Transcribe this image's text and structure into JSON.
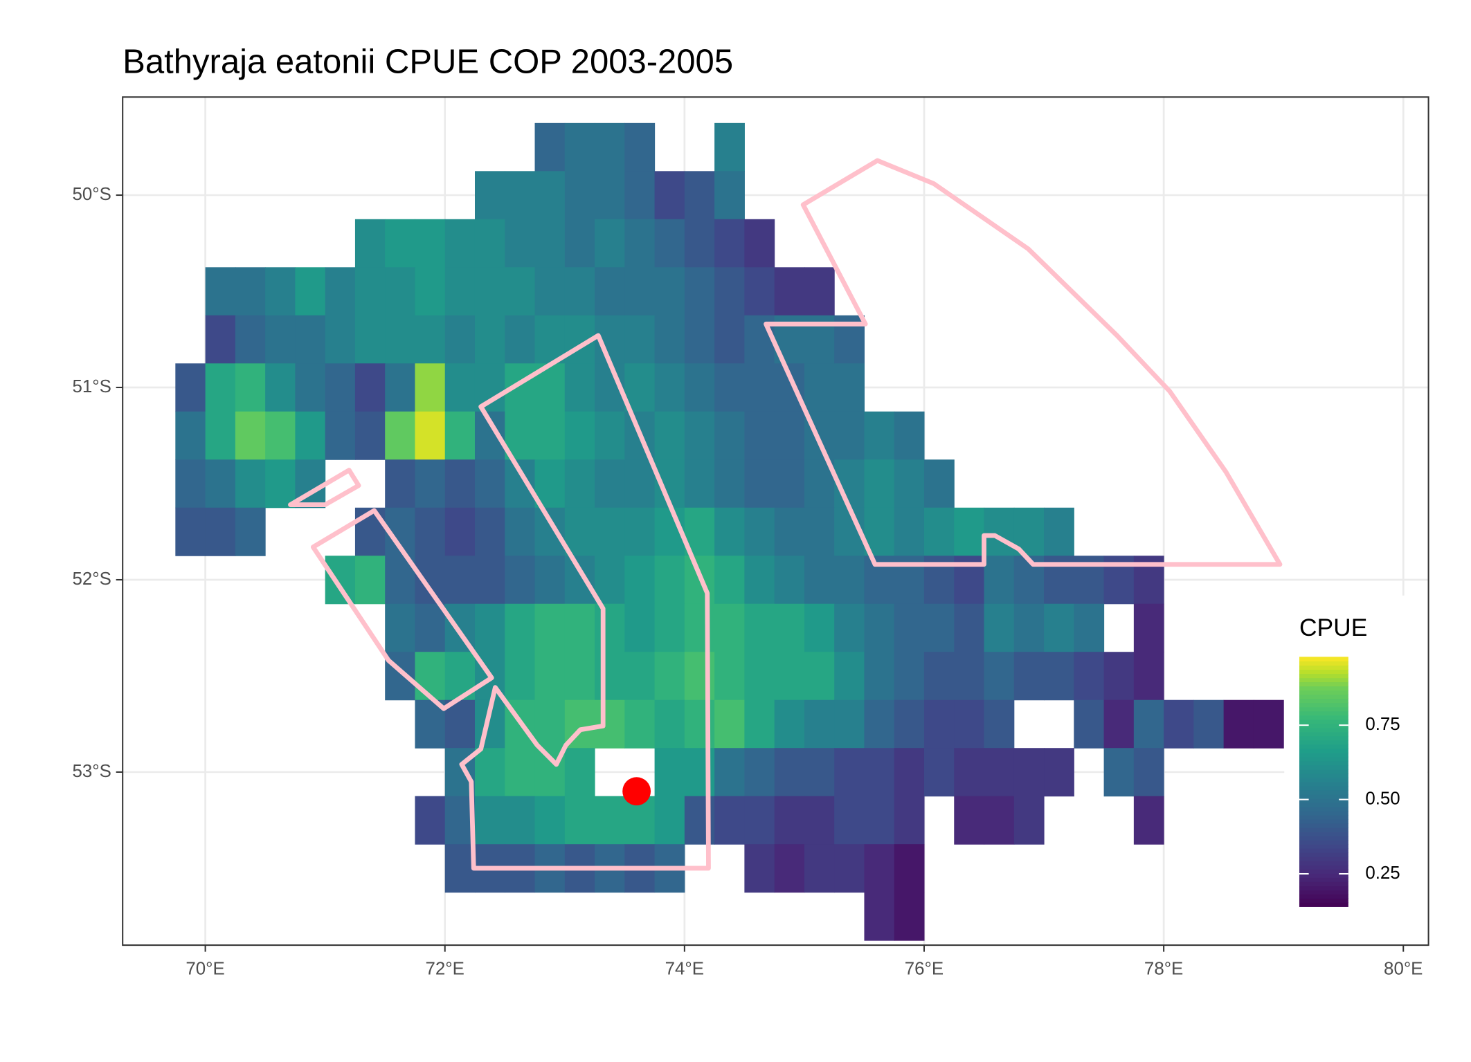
{
  "chart_data": {
    "type": "heatmap",
    "title": "Bathyraja eatonii  CPUE COP 2003-2005",
    "x": [
      69.875,
      70.125,
      70.375,
      70.625,
      70.875,
      71.125,
      71.375,
      71.625,
      71.875,
      72.125,
      72.375,
      72.625,
      72.875,
      73.125,
      73.375,
      73.625,
      73.875,
      74.125,
      74.375,
      74.625,
      74.875,
      75.125,
      75.375,
      75.625,
      75.875,
      76.125,
      76.375,
      76.625,
      76.875,
      77.125,
      77.375,
      77.625,
      77.875,
      78.125,
      78.375,
      78.625,
      78.875
    ],
    "y": [
      -49.75,
      -50,
      -50.25,
      -50.5,
      -50.75,
      -51,
      -51.25,
      -51.5,
      -51.75,
      -52,
      -52.25,
      -52.5,
      -52.75,
      -53,
      -53.25,
      -53.5,
      -53.75
    ],
    "values": [
      [
        null,
        null,
        null,
        null,
        null,
        null,
        null,
        null,
        null,
        null,
        null,
        null,
        0.45,
        0.5,
        0.5,
        0.45,
        null,
        null,
        0.55,
        null,
        null,
        null,
        null,
        null,
        null,
        null,
        null,
        null,
        null,
        null,
        null,
        null,
        null,
        null,
        null,
        null,
        null
      ],
      [
        null,
        null,
        null,
        null,
        null,
        null,
        null,
        null,
        null,
        null,
        0.55,
        0.55,
        0.55,
        0.5,
        0.5,
        0.45,
        0.35,
        0.4,
        0.5,
        null,
        null,
        null,
        null,
        null,
        null,
        null,
        null,
        null,
        null,
        null,
        null,
        null,
        null,
        null,
        null,
        null,
        null
      ],
      [
        null,
        null,
        null,
        null,
        null,
        null,
        0.6,
        0.65,
        0.65,
        0.6,
        0.6,
        0.55,
        0.55,
        0.5,
        0.55,
        0.5,
        0.45,
        0.4,
        0.35,
        0.3,
        null,
        null,
        null,
        null,
        null,
        null,
        null,
        null,
        null,
        null,
        null,
        null,
        null,
        null,
        null,
        null,
        null
      ],
      [
        null,
        0.5,
        0.5,
        0.55,
        0.65,
        0.55,
        0.6,
        0.6,
        0.65,
        0.6,
        0.6,
        0.6,
        0.55,
        0.55,
        0.5,
        0.5,
        0.5,
        0.45,
        0.4,
        0.35,
        0.3,
        0.3,
        null,
        null,
        null,
        null,
        null,
        null,
        null,
        null,
        null,
        null,
        null,
        null,
        null,
        null,
        null
      ],
      [
        null,
        0.35,
        0.45,
        0.5,
        0.5,
        0.55,
        0.6,
        0.6,
        0.6,
        0.55,
        0.6,
        0.55,
        0.6,
        0.6,
        0.55,
        0.55,
        0.5,
        0.45,
        0.4,
        0.45,
        0.5,
        0.5,
        0.45,
        null,
        null,
        null,
        null,
        null,
        null,
        null,
        null,
        null,
        null,
        null,
        null,
        null,
        null
      ],
      [
        0.4,
        0.7,
        0.75,
        0.6,
        0.5,
        0.45,
        0.35,
        0.5,
        0.9,
        0.6,
        0.6,
        0.7,
        0.7,
        0.6,
        0.55,
        0.6,
        0.55,
        0.5,
        0.45,
        0.45,
        0.45,
        0.5,
        0.5,
        null,
        null,
        null,
        null,
        null,
        null,
        null,
        null,
        null,
        null,
        null,
        null,
        null,
        null
      ],
      [
        0.5,
        0.7,
        0.85,
        0.8,
        0.65,
        0.45,
        0.4,
        0.85,
        0.95,
        0.75,
        0.5,
        0.7,
        0.7,
        0.65,
        0.6,
        0.55,
        0.6,
        0.55,
        0.5,
        0.45,
        0.45,
        0.5,
        0.5,
        0.55,
        0.5,
        null,
        null,
        null,
        null,
        null,
        null,
        null,
        null,
        null,
        null,
        null,
        null
      ],
      [
        0.45,
        0.5,
        0.6,
        0.65,
        0.55,
        null,
        null,
        0.4,
        0.45,
        0.4,
        0.45,
        0.55,
        0.65,
        0.6,
        0.55,
        0.55,
        0.6,
        0.55,
        0.5,
        0.45,
        0.45,
        0.5,
        0.55,
        0.6,
        0.55,
        0.5,
        null,
        null,
        null,
        null,
        null,
        null,
        null,
        null,
        null,
        null,
        null
      ],
      [
        0.4,
        0.4,
        0.45,
        null,
        null,
        null,
        0.4,
        0.45,
        0.4,
        0.35,
        0.4,
        0.5,
        0.55,
        0.6,
        0.6,
        0.6,
        0.65,
        0.7,
        0.6,
        0.55,
        0.5,
        0.5,
        0.55,
        0.6,
        0.55,
        0.6,
        0.65,
        0.6,
        0.6,
        0.55,
        null,
        null,
        null,
        null,
        null,
        null,
        null
      ],
      [
        null,
        null,
        null,
        null,
        null,
        0.7,
        0.75,
        0.45,
        0.4,
        0.4,
        0.4,
        0.45,
        0.5,
        0.55,
        0.6,
        0.65,
        0.7,
        0.75,
        0.7,
        0.6,
        0.55,
        0.5,
        0.5,
        0.45,
        0.45,
        0.4,
        0.35,
        0.5,
        0.45,
        0.4,
        0.4,
        0.35,
        0.3,
        null,
        null,
        null,
        null
      ],
      [
        null,
        null,
        null,
        null,
        null,
        null,
        null,
        0.5,
        0.45,
        0.55,
        0.6,
        0.7,
        0.75,
        0.75,
        0.7,
        0.65,
        0.7,
        0.75,
        0.75,
        0.7,
        0.7,
        0.65,
        0.55,
        0.5,
        0.45,
        0.45,
        0.4,
        0.55,
        0.5,
        0.55,
        0.5,
        null,
        0.25,
        null,
        null,
        null,
        null
      ],
      [
        null,
        null,
        null,
        null,
        null,
        null,
        null,
        0.45,
        0.75,
        0.7,
        0.6,
        0.7,
        0.75,
        0.75,
        0.7,
        0.7,
        0.75,
        0.8,
        0.75,
        0.7,
        0.7,
        0.7,
        0.6,
        0.5,
        0.45,
        0.4,
        0.4,
        0.45,
        0.4,
        0.4,
        0.35,
        0.3,
        0.25,
        null,
        null,
        null,
        null
      ],
      [
        null,
        null,
        null,
        null,
        null,
        null,
        null,
        null,
        0.45,
        0.4,
        0.6,
        0.75,
        0.75,
        0.8,
        0.8,
        0.75,
        0.7,
        0.75,
        0.8,
        0.7,
        0.6,
        0.55,
        0.55,
        0.45,
        0.4,
        0.35,
        0.35,
        0.4,
        null,
        null,
        0.4,
        0.25,
        0.45,
        0.35,
        0.4,
        0.2,
        0.2
      ],
      [
        null,
        null,
        null,
        null,
        null,
        null,
        null,
        null,
        null,
        0.5,
        0.7,
        0.75,
        0.75,
        0.7,
        null,
        null,
        0.65,
        0.65,
        0.5,
        0.45,
        0.4,
        0.4,
        0.35,
        0.35,
        0.3,
        0.35,
        0.3,
        0.3,
        0.3,
        0.3,
        null,
        0.45,
        0.4,
        null,
        null,
        null,
        null
      ],
      [
        null,
        null,
        null,
        null,
        null,
        null,
        null,
        null,
        0.35,
        0.45,
        0.6,
        0.6,
        0.65,
        0.7,
        0.7,
        0.7,
        0.65,
        0.4,
        0.35,
        0.35,
        0.3,
        0.3,
        0.35,
        0.35,
        0.3,
        null,
        0.25,
        0.25,
        0.3,
        null,
        null,
        null,
        0.25,
        null,
        null,
        null,
        null
      ],
      [
        null,
        null,
        null,
        null,
        null,
        null,
        null,
        null,
        null,
        0.4,
        0.4,
        0.4,
        0.45,
        0.4,
        0.45,
        0.4,
        0.45,
        null,
        null,
        0.3,
        0.25,
        0.3,
        0.3,
        0.25,
        0.2,
        null,
        null,
        null,
        null,
        null,
        null,
        null,
        null,
        null,
        null,
        null,
        null
      ],
      [
        null,
        null,
        null,
        null,
        null,
        null,
        null,
        null,
        null,
        null,
        null,
        null,
        null,
        null,
        null,
        null,
        null,
        null,
        null,
        null,
        null,
        null,
        null,
        0.25,
        0.2,
        null,
        null,
        null,
        null,
        null,
        null,
        null,
        null,
        null,
        null,
        null,
        null
      ]
    ],
    "xlim": [
      69.31,
      80.21
    ],
    "ylim": [
      -53.9,
      -49.49
    ],
    "xticks": [
      {
        "value": 70,
        "label": "70°E"
      },
      {
        "value": 72,
        "label": "72°E"
      },
      {
        "value": 74,
        "label": "74°E"
      },
      {
        "value": 76,
        "label": "76°E"
      },
      {
        "value": 78,
        "label": "78°E"
      },
      {
        "value": 80,
        "label": "80°E"
      }
    ],
    "yticks": [
      {
        "value": -50,
        "label": "50°S"
      },
      {
        "value": -51,
        "label": "51°S"
      },
      {
        "value": -52,
        "label": "52°S"
      },
      {
        "value": -53,
        "label": "53°S"
      }
    ],
    "grid": true,
    "colorbar": {
      "title": "CPUE",
      "limits": [
        0.14,
        0.98
      ],
      "ticks": [
        0.25,
        {
          "value": 0.5,
          "label": "0.50"
        },
        0.75
      ],
      "colormap": "viridis"
    },
    "outlines": {
      "color": "pink",
      "shapes": [
        {
          "x": [
            70.71,
            71.2,
            71.28,
            71.0
          ],
          "y": [
            -51.61,
            -51.43,
            -51.51,
            -51.61
          ]
        },
        {
          "x": [
            70.9,
            71.41,
            72.39,
            71.99,
            71.53
          ],
          "y": [
            -51.83,
            -51.64,
            -52.51,
            -52.67,
            -52.42
          ]
        },
        {
          "x": [
            72.3,
            72.83,
            73.28,
            74.19,
            74.2,
            72.24,
            72.22,
            72.14,
            72.3,
            72.42,
            72.77,
            72.93,
            73.01,
            73.13,
            73.32,
            73.32
          ],
          "y": [
            -51.1,
            -50.9,
            -50.73,
            -52.07,
            -53.5,
            -53.5,
            -53.05,
            -52.96,
            -52.88,
            -52.56,
            -52.86,
            -52.96,
            -52.86,
            -52.78,
            -52.76,
            -52.15
          ]
        },
        {
          "x": [
            74.68,
            75.51,
            74.99,
            75.61,
            76.08,
            76.87,
            77.61,
            78.05,
            78.52,
            78.97,
            76.91,
            76.79,
            76.59,
            76.5,
            76.5,
            75.59
          ],
          "y": [
            -50.67,
            -50.67,
            -50.05,
            -49.82,
            -49.94,
            -50.28,
            -50.73,
            -51.02,
            -51.44,
            -51.92,
            -51.92,
            -51.84,
            -51.77,
            -51.77,
            -51.92,
            -51.92
          ]
        }
      ]
    },
    "points": {
      "color": "red",
      "x": [
        73.6
      ],
      "y": [
        -53.1
      ]
    }
  }
}
